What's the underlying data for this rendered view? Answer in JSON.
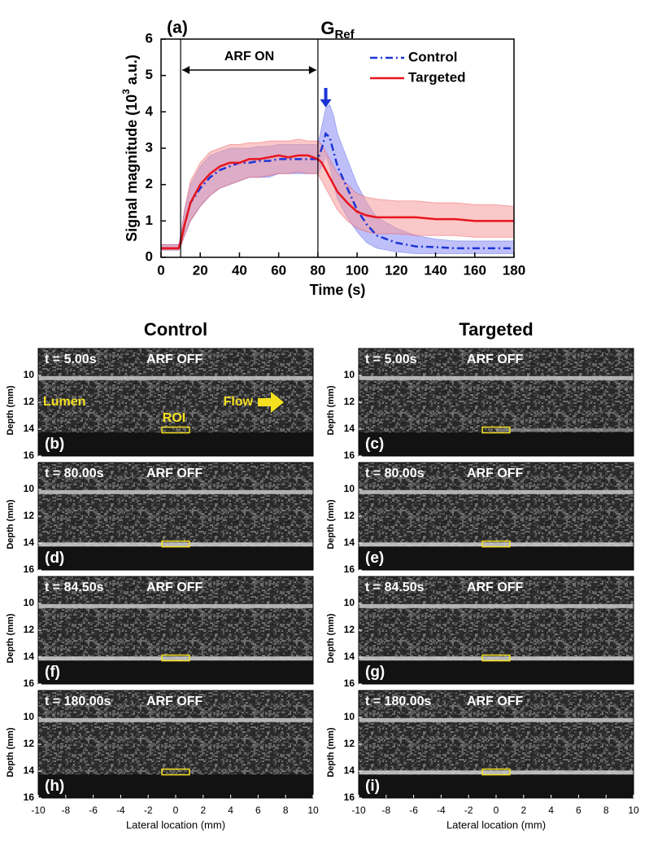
{
  "chart_data": [
    {
      "type": "line",
      "panel_label": "(a)",
      "title": "G",
      "title_sub": "Ref",
      "xlabel": "Time (s)",
      "ylabel": [
        "Signal magnitude (10",
        "3",
        " a.u.)"
      ],
      "xlim": [
        0,
        180
      ],
      "xticks": [
        0,
        20,
        40,
        60,
        80,
        100,
        120,
        140,
        160,
        180
      ],
      "ylim": [
        0,
        6
      ],
      "yticks": [
        0,
        1,
        2,
        3,
        4,
        5,
        6
      ],
      "vlines": [
        10,
        80
      ],
      "span_text": "ARF ON",
      "peak_arrow_x": 84,
      "legend": "top-right",
      "x": [
        0,
        5,
        9,
        10,
        12,
        15,
        20,
        25,
        30,
        35,
        40,
        45,
        50,
        55,
        60,
        65,
        70,
        75,
        80,
        82,
        84,
        86,
        88,
        90,
        95,
        100,
        105,
        110,
        120,
        130,
        140,
        150,
        160,
        170,
        180
      ],
      "series": [
        {
          "name": "Control",
          "color": "#1c35d6",
          "band_color": "#8a8cf5",
          "dash": "dash-dot",
          "values": [
            0.25,
            0.25,
            0.25,
            0.4,
            0.9,
            1.5,
            1.9,
            2.2,
            2.4,
            2.5,
            2.6,
            2.6,
            2.65,
            2.65,
            2.7,
            2.7,
            2.7,
            2.7,
            2.7,
            3.0,
            3.4,
            3.3,
            2.9,
            2.5,
            1.9,
            1.3,
            0.9,
            0.6,
            0.4,
            0.3,
            0.28,
            0.25,
            0.25,
            0.25,
            0.25
          ],
          "band_high": [
            0.35,
            0.35,
            0.35,
            0.6,
            1.3,
            2.0,
            2.5,
            2.8,
            2.9,
            3.0,
            3.0,
            3.0,
            3.05,
            3.05,
            3.1,
            3.1,
            3.1,
            3.1,
            3.1,
            3.6,
            4.1,
            4.2,
            3.9,
            3.4,
            2.7,
            2.0,
            1.5,
            1.1,
            0.8,
            0.6,
            0.5,
            0.45,
            0.45,
            0.45,
            0.45
          ],
          "band_low": [
            0.2,
            0.2,
            0.2,
            0.3,
            0.6,
            1.0,
            1.4,
            1.7,
            1.9,
            2.0,
            2.1,
            2.2,
            2.2,
            2.2,
            2.3,
            2.3,
            2.3,
            2.3,
            2.3,
            2.5,
            2.8,
            2.5,
            2.0,
            1.6,
            1.1,
            0.7,
            0.4,
            0.25,
            0.15,
            0.1,
            0.1,
            0.1,
            0.1,
            0.1,
            0.1
          ]
        },
        {
          "name": "Targeted",
          "color": "#e8141e",
          "band_color": "#f59a9a",
          "dash": "solid",
          "values": [
            0.25,
            0.25,
            0.25,
            0.4,
            0.9,
            1.5,
            2.0,
            2.3,
            2.5,
            2.6,
            2.6,
            2.7,
            2.7,
            2.75,
            2.8,
            2.75,
            2.8,
            2.8,
            2.7,
            2.6,
            2.4,
            2.2,
            2.0,
            1.8,
            1.5,
            1.25,
            1.15,
            1.1,
            1.1,
            1.1,
            1.05,
            1.05,
            1.0,
            1.0,
            1.0
          ],
          "band_high": [
            0.35,
            0.35,
            0.35,
            0.6,
            1.3,
            2.1,
            2.6,
            2.9,
            3.0,
            3.1,
            3.1,
            3.15,
            3.15,
            3.2,
            3.2,
            3.2,
            3.25,
            3.2,
            3.2,
            3.1,
            2.9,
            2.7,
            2.5,
            2.3,
            2.0,
            1.75,
            1.65,
            1.6,
            1.55,
            1.55,
            1.5,
            1.5,
            1.45,
            1.45,
            1.4
          ],
          "band_low": [
            0.2,
            0.2,
            0.2,
            0.3,
            0.6,
            1.0,
            1.4,
            1.7,
            1.9,
            2.0,
            2.1,
            2.2,
            2.2,
            2.25,
            2.3,
            2.3,
            2.35,
            2.3,
            2.3,
            2.1,
            1.9,
            1.7,
            1.5,
            1.3,
            1.0,
            0.8,
            0.7,
            0.65,
            0.65,
            0.6,
            0.6,
            0.6,
            0.55,
            0.55,
            0.55
          ]
        }
      ]
    },
    {
      "type": "image-grid",
      "columns": [
        "Control",
        "Targeted"
      ],
      "xlabel": "Lateral location (mm)",
      "ylabel": "Depth (mm)",
      "xlim": [
        -10,
        10
      ],
      "xticks": [
        -10,
        -8,
        -6,
        -4,
        -2,
        0,
        2,
        4,
        6,
        8,
        10
      ],
      "ylim": [
        8,
        16
      ],
      "yticks": [
        10,
        12,
        14,
        16
      ],
      "annotations": {
        "lumen": "Lumen",
        "roi": "ROI",
        "flow": "Flow"
      },
      "panels": [
        {
          "label": "(b)",
          "time": "t = 5.00s",
          "status": "ARF OFF"
        },
        {
          "label": "(c)",
          "time": "t = 5.00s",
          "status": "ARF OFF"
        },
        {
          "label": "(d)",
          "time": "t = 80.00s",
          "status": "ARF OFF"
        },
        {
          "label": "(e)",
          "time": "t = 80.00s",
          "status": "ARF OFF"
        },
        {
          "label": "(f)",
          "time": "t = 84.50s",
          "status": "ARF OFF"
        },
        {
          "label": "(g)",
          "time": "t = 84.50s",
          "status": "ARF OFF"
        },
        {
          "label": "(h)",
          "time": "t = 180.00s",
          "status": "ARF OFF"
        },
        {
          "label": "(i)",
          "time": "t = 180.00s",
          "status": "ARF OFF"
        }
      ]
    }
  ]
}
